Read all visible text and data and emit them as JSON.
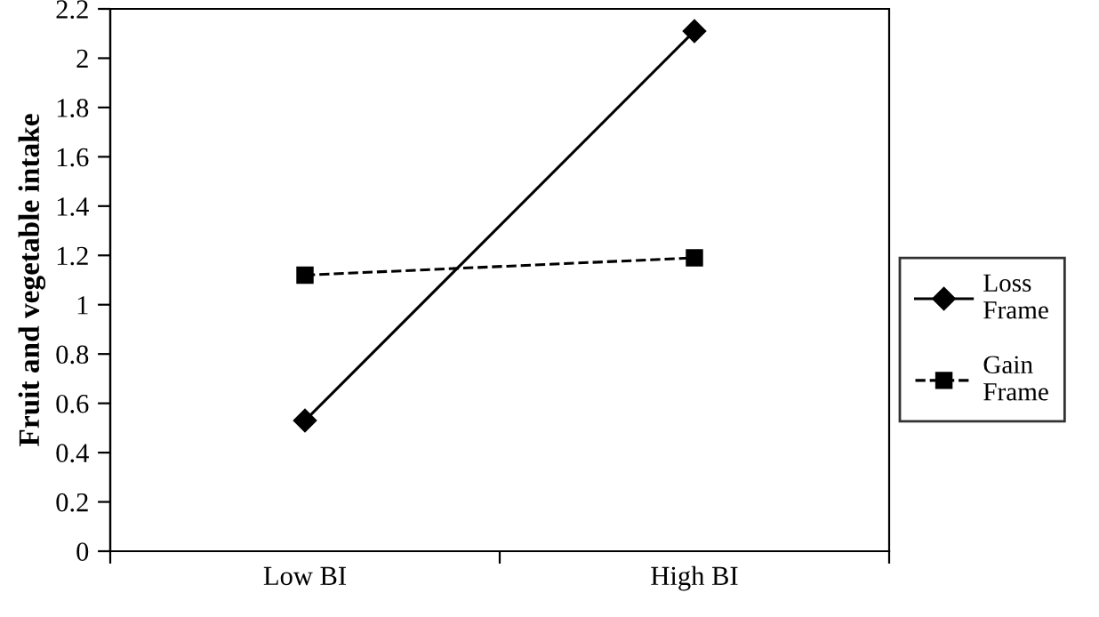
{
  "chart_data": {
    "type": "line",
    "ylabel": "Fruit and vegetable intake",
    "categories": [
      "Low BI",
      "High BI"
    ],
    "series": [
      {
        "name": "Loss Frame",
        "color": "#000000",
        "values": [
          0.53,
          2.11
        ],
        "marker": "diamond",
        "line_style": "solid"
      },
      {
        "name": "Gain Frame",
        "color": "#000000",
        "values": [
          1.12,
          1.19
        ],
        "marker": "square",
        "line_style": "dashed"
      }
    ],
    "ylim": [
      0,
      2.2
    ],
    "yticks": [
      0,
      0.2,
      0.4,
      0.6,
      0.8,
      1,
      1.2,
      1.4,
      1.6,
      1.8,
      2,
      2.2
    ],
    "grid": false,
    "legend": "right"
  }
}
